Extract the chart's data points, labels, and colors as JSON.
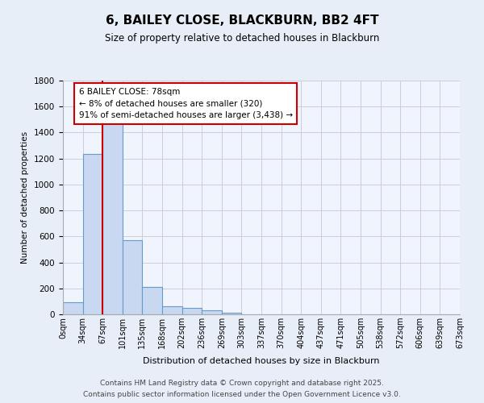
{
  "title": "6, BAILEY CLOSE, BLACKBURN, BB2 4FT",
  "subtitle": "Size of property relative to detached houses in Blackburn",
  "xlabel": "Distribution of detached houses by size in Blackburn",
  "ylabel": "Number of detached properties",
  "bin_labels": [
    "0sqm",
    "34sqm",
    "67sqm",
    "101sqm",
    "135sqm",
    "168sqm",
    "202sqm",
    "236sqm",
    "269sqm",
    "303sqm",
    "337sqm",
    "370sqm",
    "404sqm",
    "437sqm",
    "471sqm",
    "505sqm",
    "538sqm",
    "572sqm",
    "606sqm",
    "639sqm",
    "673sqm"
  ],
  "bar_values": [
    95,
    1235,
    1510,
    570,
    210,
    65,
    48,
    28,
    10,
    0,
    0,
    0,
    0,
    0,
    0,
    0,
    0,
    0,
    0,
    0
  ],
  "bar_color": "#c8d8f0",
  "bar_edge_color": "#6699cc",
  "red_line_x": 2,
  "red_line_color": "#cc0000",
  "ylim": [
    0,
    1800
  ],
  "yticks": [
    0,
    200,
    400,
    600,
    800,
    1000,
    1200,
    1400,
    1600,
    1800
  ],
  "annotation_title": "6 BAILEY CLOSE: 78sqm",
  "annotation_line1": "← 8% of detached houses are smaller (320)",
  "annotation_line2": "91% of semi-detached houses are larger (3,438) →",
  "bg_color": "#e8eef8",
  "plot_bg_color": "#f0f4fc",
  "footer_line1": "Contains HM Land Registry data © Crown copyright and database right 2025.",
  "footer_line2": "Contains public sector information licensed under the Open Government Licence v3.0.",
  "grid_color": "#ccccdd"
}
